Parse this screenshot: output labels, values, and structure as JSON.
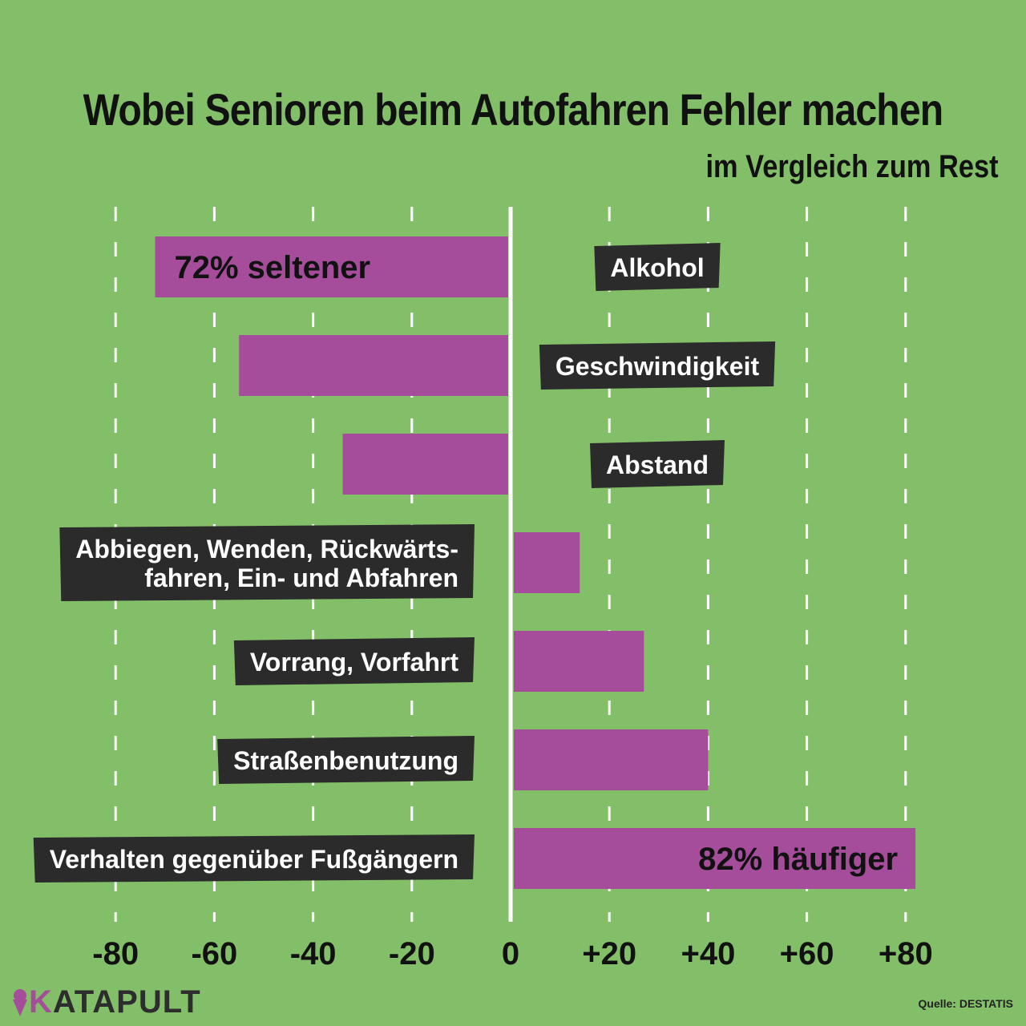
{
  "chart_data": {
    "type": "bar",
    "orientation": "horizontal",
    "title": "Wobei Senioren beim Autofahren Fehler machen",
    "subtitle": "im Vergleich zum Rest",
    "categories": [
      "Alkohol",
      "Geschwindigkeit",
      "Abstand",
      "Abbiegen, Wenden, Rückwärts-\nfahren, Ein- und Abfahren",
      "Vorrang, Vorfahrt",
      "Straßenbenutzung",
      "Verhalten gegenüber Fußgängern"
    ],
    "values": [
      -72,
      -55,
      -34,
      14,
      27,
      40,
      82
    ],
    "annotations": [
      {
        "category_index": 0,
        "text": "72% seltener"
      },
      {
        "category_index": 6,
        "text": "82% häufiger"
      }
    ],
    "xlim": [
      -80,
      80
    ],
    "x_ticks": [
      -80,
      -60,
      -40,
      -20,
      0,
      20,
      40,
      60,
      80
    ],
    "x_tick_labels": [
      "-80",
      "-60",
      "-40",
      "-20",
      "0",
      "+20",
      "+40",
      "+60",
      "+80"
    ],
    "grid": "dashed vertical",
    "colors": {
      "background": "#83bf68",
      "bar": "#a54d9b",
      "label_box": "#2b2b2b",
      "label_text": "#ffffff",
      "zero_line": "#ffffff",
      "grid": "#ffffff"
    }
  },
  "branding": {
    "logo_text": "KATAPULT",
    "logo_icon": "ice-cream-cone-icon",
    "source": "Quelle: DESTATIS"
  }
}
